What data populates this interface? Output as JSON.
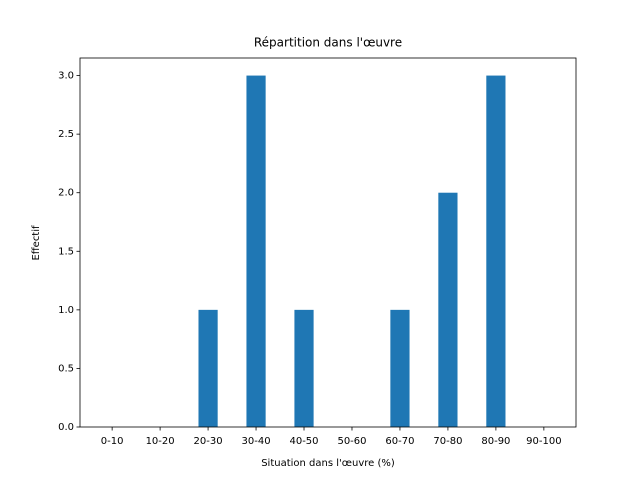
{
  "chart_data": {
    "type": "bar",
    "title": "Répartition dans l'œuvre",
    "xlabel": "Situation dans l'œuvre (%)",
    "ylabel": "Effectif",
    "categories": [
      "0-10",
      "10-20",
      "20-30",
      "30-40",
      "40-50",
      "50-60",
      "60-70",
      "70-80",
      "80-90",
      "90-100"
    ],
    "values": [
      0,
      0,
      1,
      3,
      1,
      0,
      1,
      2,
      3,
      0
    ],
    "color": "#1f77b4",
    "ylim": [
      0,
      3.15
    ],
    "yticks": [
      {
        "value": 0,
        "label": "0.0"
      },
      0.5,
      {
        "value": 1,
        "label": "1.0"
      },
      1.5,
      {
        "value": 2,
        "label": "2.0"
      },
      2.5,
      {
        "value": 3,
        "label": "3.0"
      }
    ],
    "grid": false
  }
}
